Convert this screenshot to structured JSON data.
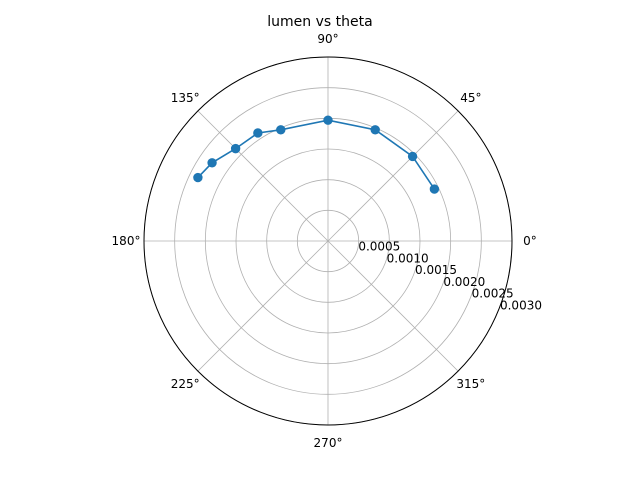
{
  "chart_data": {
    "type": "line",
    "subtype": "polar",
    "title": "lumen vs theta",
    "angle_unit": "degrees",
    "angular_ticks": [
      "0°",
      "45°",
      "90°",
      "135°",
      "180°",
      "225°",
      "270°",
      "315°"
    ],
    "radial_ticks": [
      "0.0005",
      "0.0010",
      "0.0015",
      "0.0020",
      "0.0025",
      "0.0030"
    ],
    "rlim": [
      0,
      0.003
    ],
    "grid": true,
    "legend": "none",
    "series": [
      {
        "theta": [
          26,
          45,
          67,
          90,
          113,
          123,
          135,
          146,
          154
        ],
        "r": [
          0.00193,
          0.00195,
          0.00197,
          0.00197,
          0.00197,
          0.0021,
          0.00213,
          0.00228,
          0.00236
        ],
        "color": "#1f77b4",
        "marker": "circle"
      }
    ]
  }
}
